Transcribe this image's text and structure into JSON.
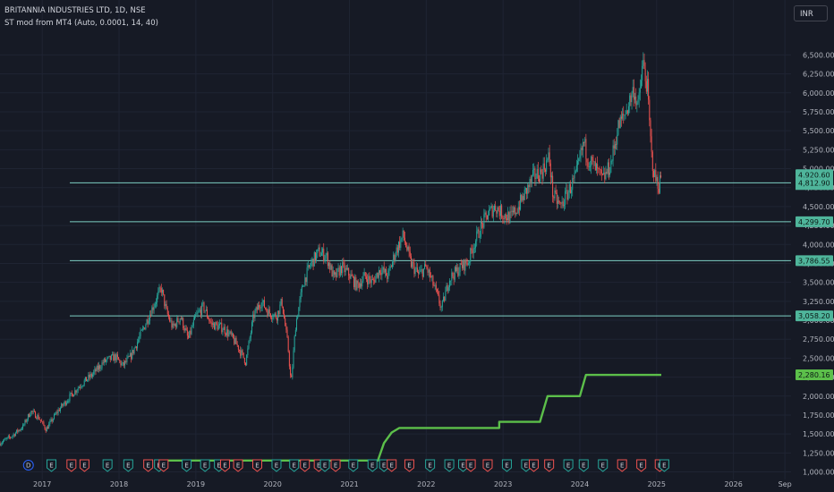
{
  "header": {
    "title": "BRITANNIA INDUSTRIES LTD, 1D, NSE",
    "indicator": "ST mod from MT4 (Auto, 0.0001, 14, 40)"
  },
  "currency_label": "INR",
  "colors": {
    "background": "#161a25",
    "grid": "#1f2433",
    "up_candle": "#26a69a",
    "down_candle": "#ef5350",
    "horizontal_line": "#7ecfc3",
    "price_tag": "#4fb59b",
    "indicator_line": "#5cbf4a",
    "axis_text": "#b2b5be",
    "earnings_badge": "#26a69a",
    "earnings_badge_alt": "#ef5350",
    "dividend_badge": "#2962ff"
  },
  "chart_data": {
    "type": "line",
    "symbol": "BRITANNIA INDUSTRIES LTD",
    "timeframe": "1D",
    "exchange": "NSE",
    "y_axis": {
      "range": [
        900,
        6800
      ],
      "ticks": [
        1000,
        1250,
        1500,
        1750,
        2000,
        2250,
        2500,
        2750,
        3000,
        3250,
        3500,
        3750,
        4000,
        4250,
        4500,
        4750,
        5000,
        5250,
        5500,
        5750,
        6000,
        6250,
        6500
      ],
      "tick_labels": [
        "1,000.00",
        "1,250.00",
        "1,500.00",
        "1,750.00",
        "2,000.00",
        "2,250.00",
        "2,500.00",
        "2,750.00",
        "3,000.00",
        "3,250.00",
        "3,500.00",
        "3,750.00",
        "4,000.00",
        "4,250.00",
        "4,500.00",
        "4,750.00",
        "5,000.00",
        "5,250.00",
        "5,500.00",
        "5,750.00",
        "6,000.00",
        "6,250.00",
        "6,500.00"
      ]
    },
    "x_axis": {
      "range": [
        2016.45,
        2026.75
      ],
      "ticks": [
        2017,
        2018,
        2019,
        2020,
        2021,
        2022,
        2023,
        2024,
        2025,
        2026,
        2026.67
      ],
      "tick_labels": [
        "2017",
        "2018",
        "2019",
        "2020",
        "2021",
        "2022",
        "2023",
        "2024",
        "2025",
        "2026",
        "Sep"
      ]
    },
    "price_series": {
      "name": "",
      "points": [
        [
          2016.45,
          1380
        ],
        [
          2016.6,
          1470
        ],
        [
          2016.75,
          1600
        ],
        [
          2016.85,
          1800
        ],
        [
          2016.95,
          1720
        ],
        [
          2017.05,
          1560
        ],
        [
          2017.2,
          1800
        ],
        [
          2017.35,
          1980
        ],
        [
          2017.5,
          2150
        ],
        [
          2017.65,
          2280
        ],
        [
          2017.8,
          2450
        ],
        [
          2017.95,
          2520
        ],
        [
          2018.05,
          2400
        ],
        [
          2018.15,
          2520
        ],
        [
          2018.3,
          2850
        ],
        [
          2018.45,
          3200
        ],
        [
          2018.55,
          3420
        ],
        [
          2018.62,
          3100
        ],
        [
          2018.7,
          2900
        ],
        [
          2018.8,
          3050
        ],
        [
          2018.9,
          2750
        ],
        [
          2019.0,
          3050
        ],
        [
          2019.1,
          3180
        ],
        [
          2019.2,
          2950
        ],
        [
          2019.35,
          2900
        ],
        [
          2019.45,
          2800
        ],
        [
          2019.55,
          2650
        ],
        [
          2019.65,
          2450
        ],
        [
          2019.75,
          3050
        ],
        [
          2019.85,
          3250
        ],
        [
          2019.95,
          3100
        ],
        [
          2020.05,
          3050
        ],
        [
          2020.12,
          3250
        ],
        [
          2020.2,
          2650
        ],
        [
          2020.24,
          2150
        ],
        [
          2020.3,
          2950
        ],
        [
          2020.4,
          3500
        ],
        [
          2020.5,
          3750
        ],
        [
          2020.6,
          3900
        ],
        [
          2020.7,
          3850
        ],
        [
          2020.8,
          3550
        ],
        [
          2020.9,
          3700
        ],
        [
          2021.0,
          3600
        ],
        [
          2021.1,
          3450
        ],
        [
          2021.2,
          3580
        ],
        [
          2021.3,
          3500
        ],
        [
          2021.4,
          3680
        ],
        [
          2021.5,
          3580
        ],
        [
          2021.6,
          3900
        ],
        [
          2021.7,
          4120
        ],
        [
          2021.8,
          3750
        ],
        [
          2021.9,
          3600
        ],
        [
          2022.0,
          3700
        ],
        [
          2022.1,
          3450
        ],
        [
          2022.15,
          3300
        ],
        [
          2022.2,
          3150
        ],
        [
          2022.3,
          3550
        ],
        [
          2022.45,
          3700
        ],
        [
          2022.55,
          3780
        ],
        [
          2022.6,
          3950
        ],
        [
          2022.7,
          4200
        ],
        [
          2022.8,
          4400
        ],
        [
          2022.9,
          4500
        ],
        [
          2023.0,
          4400
        ],
        [
          2023.1,
          4350
        ],
        [
          2023.2,
          4500
        ],
        [
          2023.3,
          4700
        ],
        [
          2023.4,
          4900
        ],
        [
          2023.5,
          4950
        ],
        [
          2023.6,
          5150
        ],
        [
          2023.65,
          4650
        ],
        [
          2023.75,
          4500
        ],
        [
          2023.85,
          4700
        ],
        [
          2023.95,
          4900
        ],
        [
          2024.05,
          5350
        ],
        [
          2024.1,
          5150
        ],
        [
          2024.2,
          5000
        ],
        [
          2024.3,
          4850
        ],
        [
          2024.4,
          5050
        ],
        [
          2024.5,
          5550
        ],
        [
          2024.6,
          5750
        ],
        [
          2024.7,
          6050
        ],
        [
          2024.76,
          5800
        ],
        [
          2024.82,
          6400
        ],
        [
          2024.88,
          6050
        ],
        [
          2024.93,
          5200
        ],
        [
          2024.97,
          4900
        ],
        [
          2025.03,
          4780
        ],
        [
          2025.06,
          4920
        ]
      ]
    },
    "indicator_series": {
      "name": "",
      "points": [
        [
          2018.55,
          1150
        ],
        [
          2021.37,
          1150
        ],
        [
          2021.45,
          1380
        ],
        [
          2021.55,
          1520
        ],
        [
          2021.65,
          1580
        ],
        [
          2022.95,
          1580
        ],
        [
          2022.95,
          1660
        ],
        [
          2023.48,
          1660
        ],
        [
          2023.58,
          2000
        ],
        [
          2024.0,
          2000
        ],
        [
          2024.08,
          2280
        ],
        [
          2025.06,
          2280
        ]
      ]
    },
    "horizontal_lines": [
      4812.9,
      4299.7,
      3786.55,
      3058.2
    ],
    "price_tags": [
      {
        "value": 4920.6,
        "label": "4,920.60",
        "extra": "01:32:58"
      },
      {
        "value": 4812.9,
        "label": "4,812.90"
      },
      {
        "value": 4299.7,
        "label": "4,299.70"
      },
      {
        "value": 3786.55,
        "label": "3,786.55"
      },
      {
        "value": 3058.2,
        "label": "3,058.20"
      },
      {
        "value": 2280.16,
        "label": "2,280.16",
        "kind": "indicator"
      }
    ],
    "event_markers": [
      {
        "x": 2016.82,
        "type": "D"
      },
      {
        "x": 2017.12,
        "type": "E"
      },
      {
        "x": 2017.38,
        "type": "E"
      },
      {
        "x": 2017.55,
        "type": "E"
      },
      {
        "x": 2017.85,
        "type": "E"
      },
      {
        "x": 2018.12,
        "type": "E"
      },
      {
        "x": 2018.38,
        "type": "E"
      },
      {
        "x": 2018.52,
        "type": "E"
      },
      {
        "x": 2018.58,
        "type": "E"
      },
      {
        "x": 2018.88,
        "type": "E"
      },
      {
        "x": 2019.12,
        "type": "E"
      },
      {
        "x": 2019.3,
        "type": "E"
      },
      {
        "x": 2019.38,
        "type": "E"
      },
      {
        "x": 2019.55,
        "type": "E"
      },
      {
        "x": 2019.8,
        "type": "E"
      },
      {
        "x": 2020.05,
        "type": "E"
      },
      {
        "x": 2020.28,
        "type": "E"
      },
      {
        "x": 2020.42,
        "type": "E"
      },
      {
        "x": 2020.6,
        "type": "E"
      },
      {
        "x": 2020.68,
        "type": "E"
      },
      {
        "x": 2020.82,
        "type": "E"
      },
      {
        "x": 2021.05,
        "type": "E"
      },
      {
        "x": 2021.3,
        "type": "E"
      },
      {
        "x": 2021.45,
        "type": "E"
      },
      {
        "x": 2021.55,
        "type": "E"
      },
      {
        "x": 2021.78,
        "type": "E"
      },
      {
        "x": 2022.05,
        "type": "E"
      },
      {
        "x": 2022.3,
        "type": "E"
      },
      {
        "x": 2022.48,
        "type": "E"
      },
      {
        "x": 2022.58,
        "type": "E"
      },
      {
        "x": 2022.8,
        "type": "E"
      },
      {
        "x": 2023.05,
        "type": "E"
      },
      {
        "x": 2023.3,
        "type": "E"
      },
      {
        "x": 2023.4,
        "type": "E"
      },
      {
        "x": 2023.6,
        "type": "E"
      },
      {
        "x": 2023.85,
        "type": "E"
      },
      {
        "x": 2024.05,
        "type": "E"
      },
      {
        "x": 2024.3,
        "type": "E"
      },
      {
        "x": 2024.55,
        "type": "E"
      },
      {
        "x": 2024.8,
        "type": "E"
      },
      {
        "x": 2025.04,
        "type": "E"
      },
      {
        "x": 2025.1,
        "type": "E"
      }
    ]
  }
}
